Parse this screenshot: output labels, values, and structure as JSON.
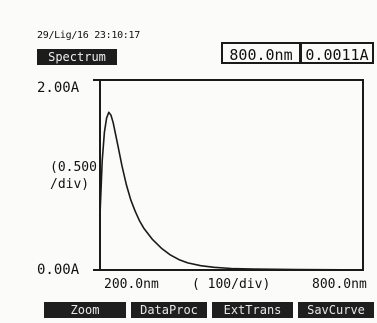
{
  "header": {
    "timestamp": "29/Lig/16 23:10:17",
    "mode": "Spectrum",
    "wavelength_readout": "800.0nm",
    "absorbance_readout": "0.0011A"
  },
  "axes": {
    "y_top_label": "2.00A",
    "y_bottom_label": "0.00A",
    "y_scale_line1": "(0.500",
    "y_scale_line2": "/div)",
    "x_left_label": "200.0nm",
    "x_scale_label": "( 100/div)",
    "x_right_label": "800.0nm"
  },
  "softkeys": {
    "zoom": "Zoom",
    "dataproc": "DataProc",
    "exttrans": "ExtTrans",
    "savcurve": "SavCurve"
  },
  "colors": {
    "trace": "#1a1a1a",
    "frame": "#1a1a1a",
    "key_background": "#1e1e1e"
  },
  "chart_data": {
    "type": "line",
    "xlabel": "",
    "ylabel": "",
    "xlim": [
      200,
      800
    ],
    "ylim": [
      0,
      2
    ],
    "x_unit": "nm",
    "y_unit": "A",
    "grid": false,
    "series": [
      {
        "x": [
          200,
          205,
          210,
          215,
          220,
          225,
          230,
          240,
          250,
          260,
          270,
          280,
          290,
          300,
          320,
          340,
          360,
          380,
          400,
          430,
          460,
          500,
          550,
          600,
          650,
          700,
          750,
          800
        ],
        "y": [
          0.58,
          1.15,
          1.45,
          1.6,
          1.66,
          1.63,
          1.55,
          1.33,
          1.1,
          0.9,
          0.74,
          0.62,
          0.52,
          0.44,
          0.32,
          0.23,
          0.16,
          0.11,
          0.075,
          0.045,
          0.028,
          0.016,
          0.01,
          0.007,
          0.005,
          0.003,
          0.002,
          0.001
        ]
      }
    ]
  }
}
